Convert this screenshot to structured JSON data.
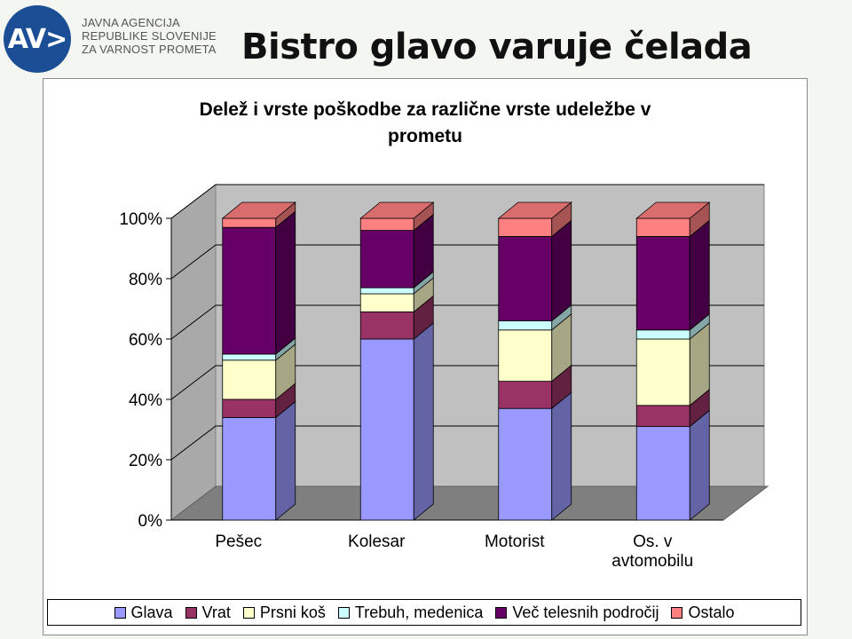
{
  "logo": {
    "mark": "AV>",
    "lines": [
      "JAVNA AGENCIJA",
      "REPUBLIKE SLOVENIJE",
      "ZA VARNOST PROMETA"
    ]
  },
  "slide_title": "Bistro glavo varuje čelada",
  "chart_data": {
    "type": "bar",
    "stacked": true,
    "percent": true,
    "three_d": true,
    "title_lines": [
      "Delež i vrste poškodbe za različne vrste udeležbe v",
      "prometu"
    ],
    "categories": [
      [
        "Pešec"
      ],
      [
        "Kolesar"
      ],
      [
        "Motorist"
      ],
      [
        "Os. v",
        "avtomobilu"
      ]
    ],
    "yticks": [
      "0%",
      "20%",
      "40%",
      "60%",
      "80%",
      "100%"
    ],
    "ylim": [
      0,
      100
    ],
    "grid": true,
    "legend_position": "bottom",
    "series": [
      {
        "name": "Glava",
        "color": "#9999ff",
        "values": [
          34,
          60,
          37,
          31
        ]
      },
      {
        "name": "Vrat",
        "color": "#993366",
        "values": [
          6,
          9,
          9,
          7
        ]
      },
      {
        "name": "Prsni koš",
        "color": "#ffffcc",
        "values": [
          13,
          6,
          17,
          22
        ]
      },
      {
        "name": "Trebuh, medenica",
        "color": "#ccffff",
        "values": [
          2,
          2,
          3,
          3
        ]
      },
      {
        "name": "Več telesnih področij",
        "color": "#660066",
        "values": [
          42,
          19,
          28,
          31
        ]
      },
      {
        "name": "Ostalo",
        "color": "#ff8080",
        "values": [
          3,
          4,
          6,
          6
        ]
      }
    ]
  }
}
